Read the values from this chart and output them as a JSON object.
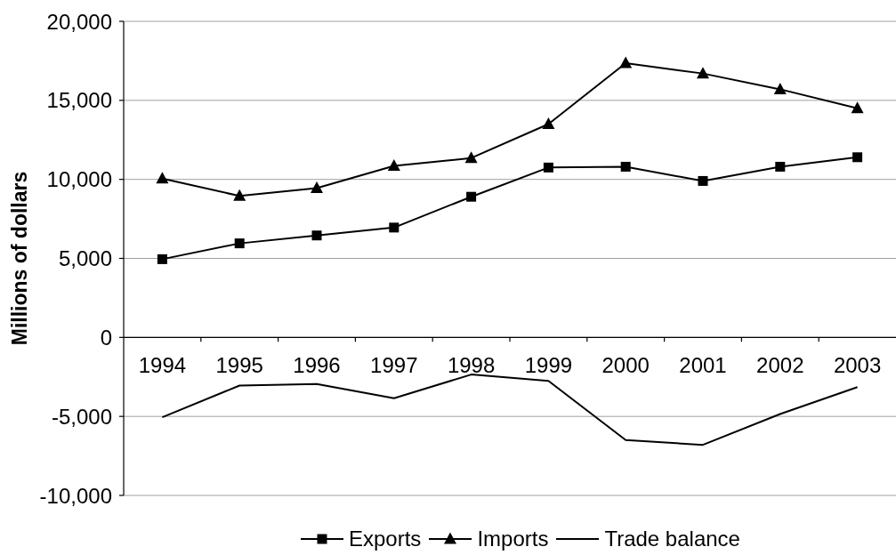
{
  "chart_data": {
    "type": "line",
    "ylabel": "Millions of dollars",
    "categories": [
      "1994",
      "1995",
      "1996",
      "1997",
      "1998",
      "1999",
      "2000",
      "2001",
      "2002",
      "2003"
    ],
    "series": [
      {
        "name": "Exports",
        "color": "#000000",
        "marker": "square",
        "values": [
          4950,
          5950,
          6450,
          6950,
          8900,
          10750,
          10800,
          9900,
          10800,
          11400
        ]
      },
      {
        "name": "Imports",
        "color": "#000000",
        "marker": "triangle",
        "values": [
          10050,
          8950,
          9450,
          10850,
          11350,
          13500,
          17350,
          16700,
          15700,
          14500
        ]
      },
      {
        "name": "Trade balance",
        "color": "#000000",
        "values": [
          -5050,
          -3050,
          -2950,
          -3850,
          -2350,
          -2750,
          -6500,
          -6800,
          -4850,
          -3150
        ]
      }
    ],
    "ylim": [
      -10000,
      20000
    ],
    "yticks": [
      {
        "value": -10000,
        "label": "-10,000"
      },
      {
        "value": -5000,
        "label": "-5,000"
      },
      0,
      {
        "value": 5000,
        "label": "5,000"
      },
      {
        "value": 10000,
        "label": "10,000"
      },
      {
        "value": 15000,
        "label": "15,000"
      },
      {
        "value": 20000,
        "label": "20,000"
      }
    ],
    "grid": "y",
    "legend": "bottom",
    "line_style": "solid"
  }
}
